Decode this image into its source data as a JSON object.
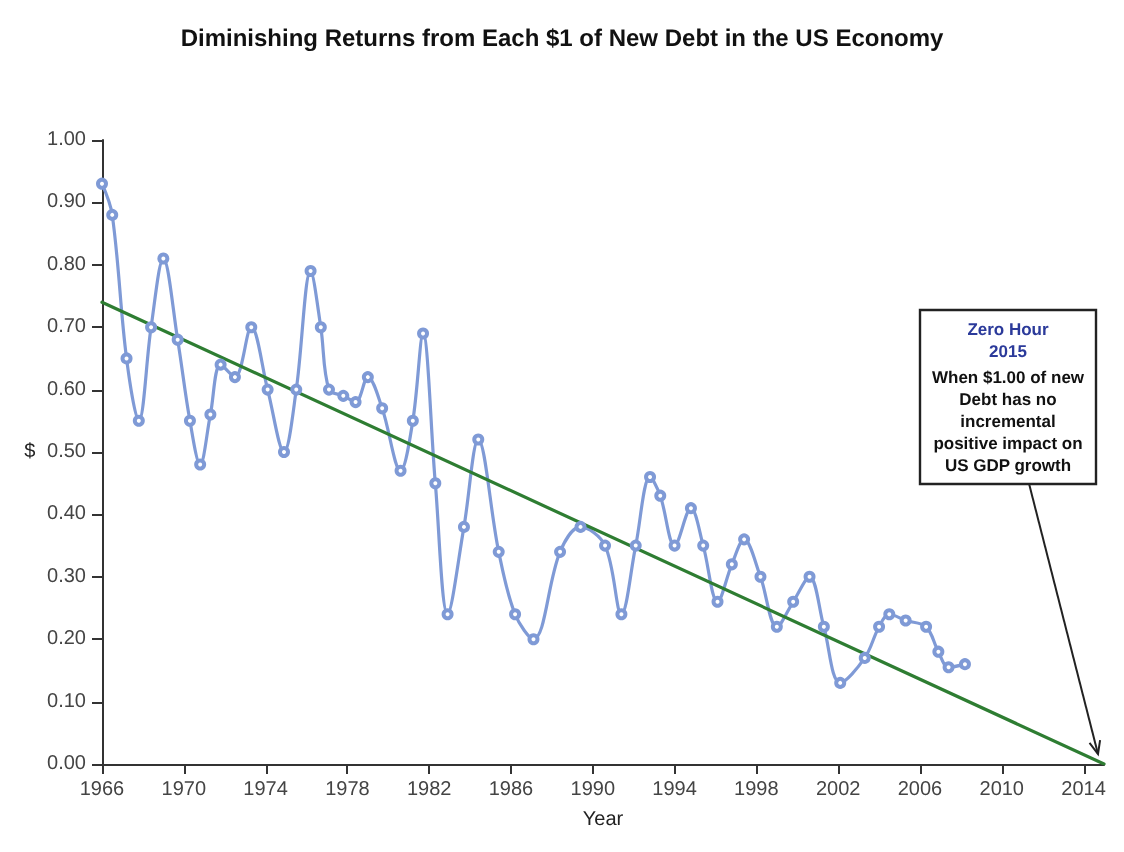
{
  "chart_data": {
    "type": "line",
    "title": "Diminishing Returns from Each $1 of New Debt in the US Economy",
    "xlabel": "Year",
    "ylabel": "$",
    "xlim": [
      1966,
      2015
    ],
    "xticks": [
      1966,
      1970,
      1974,
      1978,
      1982,
      1986,
      1990,
      1994,
      1998,
      2002,
      2006,
      2010,
      2014
    ],
    "ylim": [
      0,
      1
    ],
    "yticks": [
      {
        "value": 0,
        "label": "0.00"
      },
      {
        "value": 0.1,
        "label": "0.10"
      },
      {
        "value": 0.2,
        "label": "0.20"
      },
      {
        "value": 0.3,
        "label": "0.30"
      },
      {
        "value": 0.4,
        "label": "0.40"
      },
      {
        "value": 0.5,
        "label": "0.50"
      },
      {
        "value": 0.6,
        "label": "0.60"
      },
      {
        "value": 0.7,
        "label": "0.70"
      },
      {
        "value": 0.8,
        "label": "0.80"
      },
      {
        "value": 0.9,
        "label": "0.90"
      },
      {
        "value": 1,
        "label": "1.00"
      }
    ],
    "grid": false,
    "marker": "circle",
    "series": [
      {
        "color": "#7f9ad6",
        "x": [
          1966,
          1966.5,
          1967.2,
          1967.8,
          1968.4,
          1969.0,
          1969.7,
          1970.3,
          1970.8,
          1971.3,
          1971.8,
          1972.5,
          1973.3,
          1974.1,
          1974.9,
          1975.5,
          1976.2,
          1976.7,
          1977.1,
          1977.8,
          1978.4,
          1979.0,
          1979.7,
          1980.6,
          1981.2,
          1981.7,
          1982.3,
          1982.9,
          1983.7,
          1984.4,
          1985.4,
          1986.2,
          1987.1,
          1988.4,
          1989.4,
          1990.6,
          1991.4,
          1992.1,
          1992.8,
          1993.3,
          1994.0,
          1994.8,
          1995.4,
          1996.1,
          1996.8,
          1997.4,
          1998.2,
          1999.0,
          1999.8,
          2000.6,
          2001.3,
          2002.1,
          2003.3,
          2004.0,
          2004.5,
          2005.3,
          2006.3,
          2006.9,
          2007.4,
          2008.2
        ],
        "values": [
          0.93,
          0.88,
          0.65,
          0.55,
          0.7,
          0.81,
          0.68,
          0.55,
          0.48,
          0.56,
          0.64,
          0.62,
          0.7,
          0.6,
          0.5,
          0.6,
          0.79,
          0.7,
          0.6,
          0.59,
          0.58,
          0.62,
          0.57,
          0.47,
          0.55,
          0.69,
          0.45,
          0.24,
          0.38,
          0.52,
          0.34,
          0.24,
          0.2,
          0.34,
          0.38,
          0.35,
          0.24,
          0.35,
          0.46,
          0.43,
          0.35,
          0.41,
          0.35,
          0.26,
          0.32,
          0.36,
          0.3,
          0.22,
          0.26,
          0.3,
          0.22,
          0.13,
          0.17,
          0.22,
          0.24,
          0.23,
          0.22,
          0.18,
          0.155,
          0.16
        ]
      },
      {
        "type": "line",
        "marker": "none",
        "color": "#2e7d32",
        "x": [
          1966,
          2015
        ],
        "values": [
          0.74,
          0
        ]
      }
    ],
    "annotations": [
      "Zero Hour\n2015",
      {
        "text": "When $1.00 of new\nDebt has no\nincremental\npositive impact on\nUS GDP growth",
        "x": 2015,
        "y": 0
      }
    ]
  }
}
